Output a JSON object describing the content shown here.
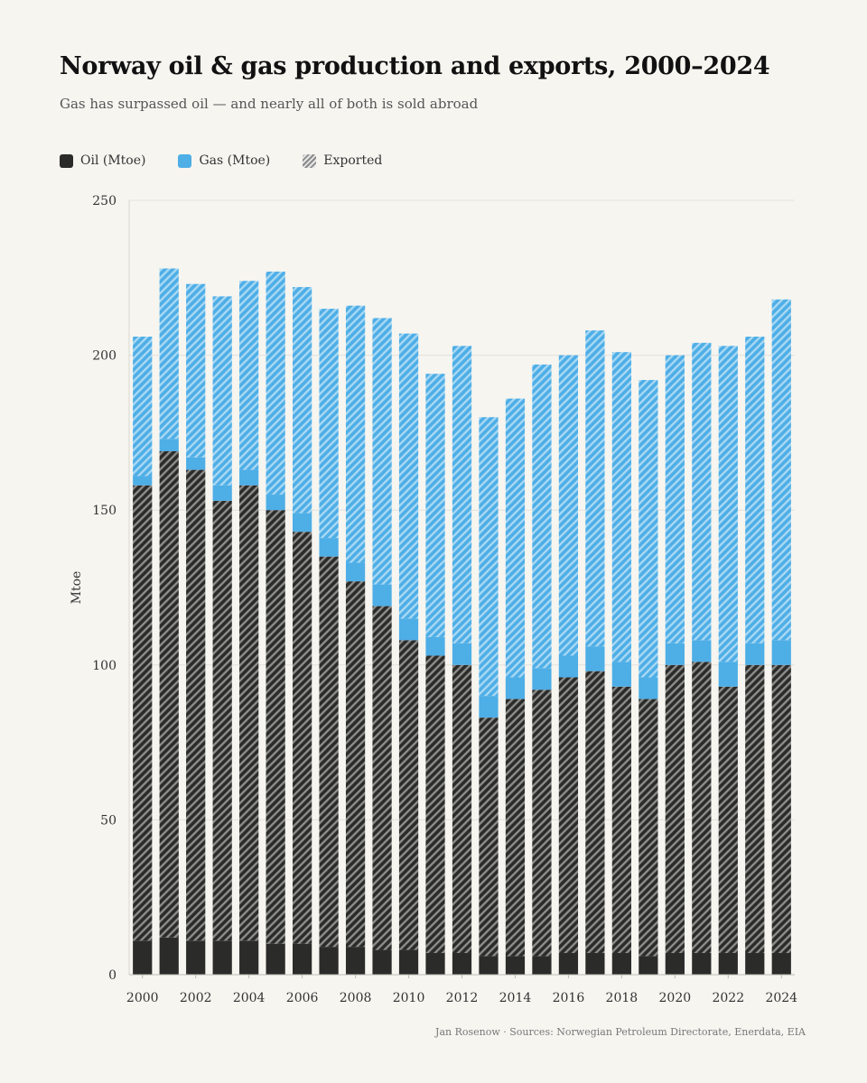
{
  "header": {
    "title": "Norway oil & gas production and exports, 2000–2024",
    "subtitle": "Gas has surpassed oil — and nearly all of both is sold abroad"
  },
  "legend": {
    "oil": "Oil (Mtoe)",
    "gas": "Gas (Mtoe)",
    "exported": "Exported"
  },
  "footer": {
    "source": "Jan Rosenow · Sources: Norwegian Petroleum Directorate, Enerdata, EIA"
  },
  "colors": {
    "oil": "#2b2b2a",
    "gas": "#4eaee6",
    "background": "#f6f5f0"
  },
  "chart_data": {
    "type": "bar",
    "stacked": true,
    "title": "Norway oil & gas production and exports, 2000–2024",
    "subtitle": "Gas has surpassed oil — and nearly all of both is sold abroad",
    "xlabel": "",
    "ylabel": "Mtoe",
    "ylim": [
      0,
      250
    ],
    "yticks": [
      0,
      50,
      100,
      150,
      200,
      250
    ],
    "xtick_labels": [
      "2000",
      "2002",
      "2004",
      "2006",
      "2008",
      "2010",
      "2012",
      "2014",
      "2016",
      "2018",
      "2020",
      "2022",
      "2024"
    ],
    "grid": true,
    "legend_position": "top-left",
    "categories": [
      2000,
      2001,
      2002,
      2003,
      2004,
      2005,
      2006,
      2007,
      2008,
      2009,
      2010,
      2011,
      2012,
      2013,
      2014,
      2015,
      2016,
      2017,
      2018,
      2019,
      2020,
      2021,
      2022,
      2023,
      2024
    ],
    "series": [
      {
        "name": "Oil (Mtoe)",
        "values": [
          158,
          169,
          163,
          153,
          158,
          150,
          143,
          135,
          127,
          119,
          108,
          103,
          100,
          83,
          89,
          92,
          96,
          98,
          93,
          89,
          100,
          101,
          93,
          100,
          100
        ],
        "exported": [
          147,
          157,
          152,
          142,
          147,
          140,
          133,
          126,
          118,
          111,
          100,
          96,
          93,
          77,
          83,
          86,
          89,
          91,
          86,
          83,
          93,
          94,
          86,
          93,
          93
        ]
      },
      {
        "name": "Gas (Mtoe)",
        "values": [
          48,
          59,
          60,
          66,
          66,
          77,
          79,
          80,
          89,
          93,
          99,
          91,
          103,
          97,
          97,
          105,
          104,
          110,
          108,
          103,
          100,
          103,
          110,
          106,
          118
        ],
        "exported": [
          45,
          55,
          56,
          61,
          61,
          72,
          73,
          74,
          83,
          86,
          92,
          85,
          96,
          90,
          90,
          98,
          97,
          102,
          100,
          96,
          93,
          96,
          102,
          99,
          110
        ]
      }
    ]
  }
}
